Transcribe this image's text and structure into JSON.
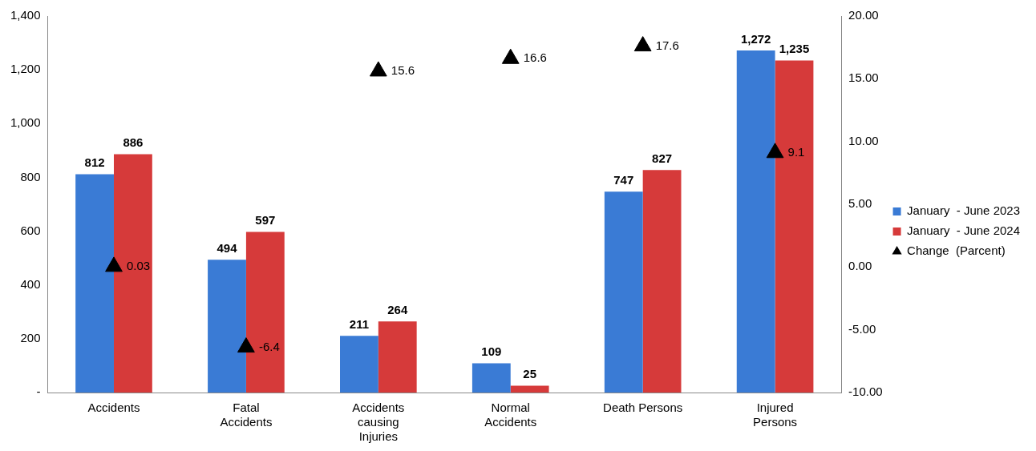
{
  "chart_data": {
    "type": "bar",
    "categories": [
      "Accidents",
      "Fatal Accidents",
      "Accidents causing Injuries",
      "Normal Accidents",
      "Death Persons",
      "Injured Persons"
    ],
    "series": [
      {
        "name": "January  - June 2023",
        "color": "#3a7bd5",
        "values": [
          812,
          494,
          211,
          109,
          747,
          1272
        ],
        "value_labels": [
          "812",
          "494",
          "211",
          "109",
          "747",
          "1,272"
        ]
      },
      {
        "name": "January  - June 2024",
        "color": "#d63a3a",
        "values": [
          886,
          597,
          264,
          25,
          827,
          1235
        ],
        "value_labels": [
          "886",
          "597",
          "264",
          "25",
          "827",
          "1,235"
        ]
      },
      {
        "name": "Change  (Parcent)",
        "type": "scatter",
        "axis": "y2",
        "color": "#000000",
        "marker": "triangle",
        "values": [
          0.03,
          -6.4,
          15.6,
          16.6,
          17.6,
          9.1
        ],
        "value_labels": [
          "0.03",
          "-6.4",
          "15.6",
          "16.6",
          "17.6",
          "9.1"
        ]
      }
    ],
    "ylim": [
      0,
      1400
    ],
    "yticks": [
      {
        "value": 0,
        "label": "-"
      },
      {
        "value": 200,
        "label": "200"
      },
      {
        "value": 400,
        "label": "400"
      },
      {
        "value": 600,
        "label": "600"
      },
      {
        "value": 800,
        "label": "800"
      },
      {
        "value": 1000,
        "label": "1,000"
      },
      {
        "value": 1200,
        "label": "1,200"
      },
      {
        "value": 1400,
        "label": "1,400"
      }
    ],
    "y2lim": [
      -10,
      20
    ],
    "y2ticks": [
      {
        "value": -10,
        "label": "-10.00"
      },
      {
        "value": -5,
        "label": "-5.00"
      },
      {
        "value": 0,
        "label": "0.00"
      },
      {
        "value": 5,
        "label": "5.00"
      },
      {
        "value": 10,
        "label": "10.00"
      },
      {
        "value": 15,
        "label": "15.00"
      },
      {
        "value": 20,
        "label": "20.00"
      }
    ],
    "grid": false,
    "legend": "right"
  }
}
